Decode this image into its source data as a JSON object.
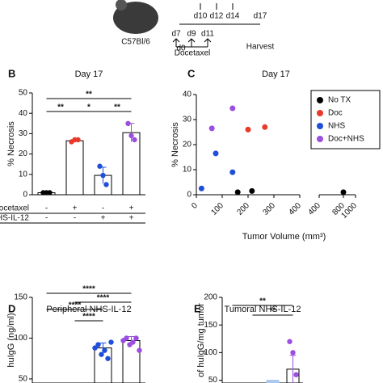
{
  "timeline": {
    "strain": "C57Bl/6",
    "days_above": [
      "d10",
      "d12",
      "d14",
      "d17"
    ],
    "days_below": [
      "d0",
      "d7",
      "d9",
      "d11"
    ],
    "drug": "Docetaxel",
    "end": "Harvest"
  },
  "chart_data": [
    {
      "type": "bar",
      "panel": "B",
      "title": "Day 17",
      "ylabel": "% Necrosis",
      "ylim": [
        0,
        50
      ],
      "yticks": [
        0,
        10,
        20,
        30,
        40,
        50
      ],
      "values": [
        1,
        26.5,
        9.5,
        30.5
      ],
      "errors": [
        0.3,
        0.5,
        4,
        4.5
      ],
      "bar_colors": [
        "#ffffff",
        "#ffffff",
        "#ffffff",
        "#ffffff"
      ],
      "points": [
        [
          1,
          1,
          1
        ],
        [
          26,
          27,
          27
        ],
        [
          14,
          9.5,
          5
        ],
        [
          35,
          29,
          27
        ]
      ],
      "point_colors": [
        "#000000",
        "#e8392a",
        "#1f4fd8",
        "#9b4fe0"
      ],
      "significance": [
        {
          "between": [
            0,
            1
          ],
          "label": "**"
        },
        {
          "between": [
            1,
            2
          ],
          "label": "*"
        },
        {
          "between": [
            2,
            3
          ],
          "label": "**"
        },
        {
          "between": [
            0,
            3
          ],
          "label": "**"
        }
      ],
      "table": {
        "rows": [
          {
            "label": "Docetaxel",
            "cells": [
              "-",
              "+",
              "-",
              "+"
            ]
          },
          {
            "label": "NHS-IL-12",
            "cells": [
              "-",
              "-",
              "+",
              "+"
            ]
          }
        ]
      }
    },
    {
      "type": "scatter",
      "panel": "C",
      "title": "Day 17",
      "ylabel": "% Necrosis",
      "xlabel": "Tumor Volume (mm³)",
      "ylim": [
        0,
        40
      ],
      "yticks": [
        0,
        10,
        20,
        30,
        40
      ],
      "xlim": [
        0,
        400
      ],
      "xticks": [
        0,
        100,
        200,
        300,
        400
      ],
      "x2lim": [
        400,
        1000
      ],
      "x2ticks": [
        400,
        800,
        1000
      ],
      "series": [
        {
          "name": "No TX",
          "color": "#000000",
          "x": [
            160,
            215,
            800
          ],
          "values": [
            1,
            1.5,
            1
          ]
        },
        {
          "name": "Doc",
          "color": "#e8392a",
          "x": [
            200,
            265
          ],
          "values": [
            26,
            27
          ]
        },
        {
          "name": "NHS",
          "color": "#1f4fd8",
          "x": [
            20,
            75,
            140
          ],
          "values": [
            2.5,
            16.5,
            9
          ]
        },
        {
          "name": "Doc+NHS",
          "color": "#9b4fe0",
          "x": [
            60,
            140
          ],
          "values": [
            26.5,
            34.5
          ]
        }
      ]
    },
    {
      "type": "bar",
      "panel": "D",
      "title": "Peripheral NHS-IL-12",
      "ylabel": "huIgG (ng/ml)",
      "ylim": [
        45,
        150
      ],
      "yticks": [
        50,
        100,
        150
      ],
      "values": [
        null,
        null,
        88,
        97
      ],
      "errors": [
        null,
        null,
        6,
        5
      ],
      "bar_colors": [
        "#ffffff",
        "#ffffff",
        "#ffffff",
        "#ffffff"
      ],
      "points": [
        [],
        [],
        [
          88,
          92,
          80,
          85,
          75,
          95
        ],
        [
          97,
          100,
          92,
          95,
          100,
          85
        ]
      ],
      "point_colors": [
        "#000000",
        "#e8392a",
        "#1f4fd8",
        "#9b4fe0"
      ],
      "significance": [
        {
          "between": [
            0,
            3
          ],
          "label": "****"
        },
        {
          "between": [
            1,
            3
          ],
          "label": "****"
        },
        {
          "between": [
            0,
            2
          ],
          "label": "****"
        },
        {
          "between": [
            1,
            2
          ],
          "label": "****"
        }
      ]
    },
    {
      "type": "bar",
      "panel": "E",
      "title": "Tumoral NHS-IL-12",
      "ylabel": "of huIgG/mg tumor",
      "ylim": [
        45,
        200
      ],
      "yticks": [
        50,
        100,
        150,
        200
      ],
      "values": [
        null,
        null,
        50,
        70
      ],
      "errors": [
        null,
        null,
        null,
        25
      ],
      "bar_colors": [
        "#ffffff",
        "#ffffff",
        "#a8c8ef",
        "#ffffff"
      ],
      "points": [
        [],
        [],
        [],
        [
          120,
          100,
          60
        ]
      ],
      "point_colors": [
        "#000000",
        "#e8392a",
        "#1f4fd8",
        "#9b4fe0"
      ],
      "significance": [
        {
          "between": [
            0,
            3
          ],
          "label": "**"
        },
        {
          "between": [
            1,
            3
          ],
          "label": "**"
        }
      ]
    }
  ]
}
